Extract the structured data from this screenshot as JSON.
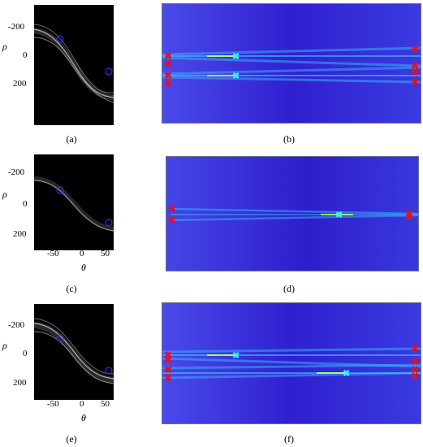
{
  "figure": {
    "panels": [
      {
        "id": "a",
        "type": "hough",
        "caption": "(a)"
      },
      {
        "id": "b",
        "type": "heatmap",
        "caption": "(b)"
      },
      {
        "id": "c",
        "type": "hough",
        "caption": "(c)"
      },
      {
        "id": "d",
        "type": "heatmap",
        "caption": "(d)"
      },
      {
        "id": "e",
        "type": "hough",
        "caption": "(e)"
      },
      {
        "id": "f",
        "type": "heatmap",
        "caption": "(f)"
      }
    ],
    "hough_axes": {
      "xlabel": "θ",
      "ylabel": "ρ",
      "xticks": [
        "-50",
        "0",
        "50"
      ],
      "yticks": [
        "-200",
        "0",
        "200"
      ]
    }
  },
  "chart_data": [
    {
      "type": "heatmap",
      "panel": "a",
      "xlabel": "θ",
      "ylabel": "ρ",
      "xlim": [
        -90,
        90
      ],
      "ylim": [
        -300,
        300
      ],
      "xticks": [
        -50,
        0,
        50
      ],
      "yticks": [
        -200,
        0,
        200
      ],
      "peaks": [
        {
          "theta": -45,
          "rho": -100
        },
        {
          "theta": 45,
          "rho": 110
        }
      ]
    },
    {
      "type": "heatmap",
      "panel": "b",
      "colormap": "jet"
    },
    {
      "type": "heatmap",
      "panel": "c",
      "xlabel": "θ",
      "ylabel": "ρ",
      "xlim": [
        -90,
        90
      ],
      "ylim": [
        -300,
        300
      ],
      "xticks": [
        -50,
        0,
        50
      ],
      "yticks": [
        -200,
        0,
        200
      ],
      "peaks": [
        {
          "theta": -45,
          "rho": -100
        },
        {
          "theta": 45,
          "rho": 115
        }
      ]
    },
    {
      "type": "heatmap",
      "panel": "d",
      "colormap": "jet"
    },
    {
      "type": "heatmap",
      "panel": "e",
      "xlabel": "θ",
      "ylabel": "ρ",
      "xlim": [
        -90,
        90
      ],
      "ylim": [
        -300,
        300
      ],
      "xticks": [
        -50,
        0,
        50
      ],
      "yticks": [
        -200,
        0,
        200
      ],
      "peaks": [
        {
          "theta": -45,
          "rho": -100
        },
        {
          "theta": 45,
          "rho": 110
        }
      ]
    },
    {
      "type": "heatmap",
      "panel": "f",
      "colormap": "jet"
    }
  ],
  "colors": {
    "hough_background": "#000000",
    "hough_curve": "#cfcfcf",
    "peak_marker": "#2b2bff",
    "heatmap_background": "#3b2fd6",
    "beam": "#37b8ff",
    "beam_core": "#a8ff60",
    "endpoint_marker": "#e0102a",
    "source_marker": "#31f2ff"
  }
}
